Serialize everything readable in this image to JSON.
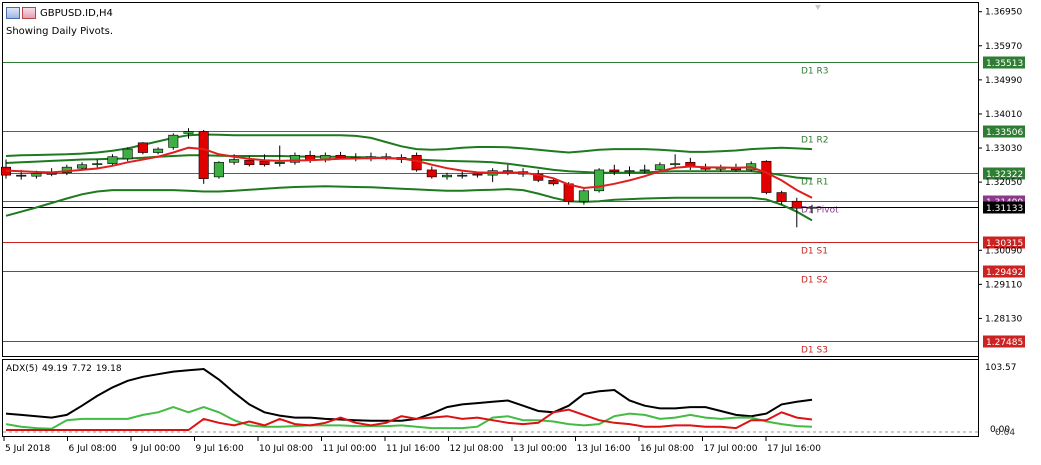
{
  "window": {
    "title": "GBPUSD.ID,H4",
    "pivot_note": "Showing Daily Pivots."
  },
  "colors": {
    "bull": "#3cb043",
    "bear": "#e00000",
    "pivot_line": "#8b3a8b",
    "resist_line": "#2e7d32",
    "support_line": "#cc2222",
    "current_price": "#000000",
    "ma": "#e02020",
    "band": "#1e7a1e",
    "adx_main": "#000000",
    "adx_plus": "#44bb44",
    "adx_minus": "#dd1111"
  },
  "price_axis": {
    "ticks": [
      "1.36950",
      "1.35970",
      "1.34990",
      "1.34010",
      "1.33030",
      "1.32050",
      "1.30090",
      "1.29110",
      "1.28130"
    ]
  },
  "pivots": [
    {
      "label": "D1 R3",
      "price": "1.35513",
      "value": 1.35513,
      "kind": "resist"
    },
    {
      "label": "D1 R2",
      "price": "1.33506",
      "value": 1.33506,
      "kind": "resist"
    },
    {
      "label": "D1 R1",
      "price": "1.32322",
      "value": 1.32322,
      "kind": "resist"
    },
    {
      "label": "D1 Pivot",
      "price": "1.31499",
      "value": 1.31499,
      "kind": "pivot"
    },
    {
      "label": "D1 S1",
      "price": "1.30315",
      "value": 1.30315,
      "kind": "support"
    },
    {
      "label": "D1 S2",
      "price": "1.29492",
      "value": 1.29492,
      "kind": "support"
    },
    {
      "label": "D1 S3",
      "price": "1.27485",
      "value": 1.27485,
      "kind": "support"
    }
  ],
  "current_price": {
    "price": "1.31133",
    "value": 1.31133
  },
  "adx": {
    "label_name": "ADX(5)",
    "adx_value": "49.19",
    "plus_di": "7.72",
    "minus_di": "19.18",
    "axis_top": "103.57",
    "axis_bottom": "0.00",
    "axis_alt": "0.04"
  },
  "time_axis": {
    "labels": [
      "5 Jul 2018",
      "6 Jul 08:00",
      "9 Jul 00:00",
      "9 Jul 16:00",
      "10 Jul 08:00",
      "11 Jul 00:00",
      "11 Jul 16:00",
      "12 Jul 08:00",
      "13 Jul 00:00",
      "13 Jul 16:00",
      "16 Jul 08:00",
      "17 Jul 00:00",
      "17 Jul 16:00"
    ]
  },
  "chart_data": {
    "type": "candlestick",
    "symbol": "GBPUSD.ID",
    "timeframe": "H4",
    "ylim": [
      1.2705,
      1.372
    ],
    "candles": [
      {
        "o": 1.3248,
        "h": 1.327,
        "l": 1.3215,
        "c": 1.3225
      },
      {
        "o": 1.3225,
        "h": 1.324,
        "l": 1.3212,
        "c": 1.3222
      },
      {
        "o": 1.3222,
        "h": 1.3238,
        "l": 1.3215,
        "c": 1.323
      },
      {
        "o": 1.3228,
        "h": 1.3245,
        "l": 1.3222,
        "c": 1.323
      },
      {
        "o": 1.3232,
        "h": 1.3255,
        "l": 1.3225,
        "c": 1.3248
      },
      {
        "o": 1.3245,
        "h": 1.3262,
        "l": 1.324,
        "c": 1.3255
      },
      {
        "o": 1.3255,
        "h": 1.327,
        "l": 1.3245,
        "c": 1.3258
      },
      {
        "o": 1.3258,
        "h": 1.3285,
        "l": 1.325,
        "c": 1.3278
      },
      {
        "o": 1.3272,
        "h": 1.3305,
        "l": 1.3265,
        "c": 1.33
      },
      {
        "o": 1.3318,
        "h": 1.332,
        "l": 1.3285,
        "c": 1.329
      },
      {
        "o": 1.329,
        "h": 1.3305,
        "l": 1.3285,
        "c": 1.33
      },
      {
        "o": 1.3305,
        "h": 1.3345,
        "l": 1.3298,
        "c": 1.334
      },
      {
        "o": 1.3345,
        "h": 1.336,
        "l": 1.333,
        "c": 1.335
      },
      {
        "o": 1.335,
        "h": 1.3355,
        "l": 1.32,
        "c": 1.3215
      },
      {
        "o": 1.322,
        "h": 1.3265,
        "l": 1.3215,
        "c": 1.3262
      },
      {
        "o": 1.3262,
        "h": 1.3285,
        "l": 1.3255,
        "c": 1.327
      },
      {
        "o": 1.3268,
        "h": 1.328,
        "l": 1.325,
        "c": 1.3255
      },
      {
        "o": 1.3265,
        "h": 1.3285,
        "l": 1.325,
        "c": 1.3255
      },
      {
        "o": 1.3258,
        "h": 1.331,
        "l": 1.325,
        "c": 1.3262
      },
      {
        "o": 1.3262,
        "h": 1.329,
        "l": 1.3255,
        "c": 1.3282
      },
      {
        "o": 1.3282,
        "h": 1.3295,
        "l": 1.326,
        "c": 1.3268
      },
      {
        "o": 1.3268,
        "h": 1.329,
        "l": 1.3262,
        "c": 1.3282
      },
      {
        "o": 1.3282,
        "h": 1.3292,
        "l": 1.327,
        "c": 1.3276
      },
      {
        "o": 1.3276,
        "h": 1.3288,
        "l": 1.3265,
        "c": 1.3272
      },
      {
        "o": 1.3272,
        "h": 1.329,
        "l": 1.3265,
        "c": 1.3278
      },
      {
        "o": 1.3278,
        "h": 1.3288,
        "l": 1.3268,
        "c": 1.3276
      },
      {
        "o": 1.3276,
        "h": 1.3285,
        "l": 1.326,
        "c": 1.327
      },
      {
        "o": 1.3282,
        "h": 1.329,
        "l": 1.3235,
        "c": 1.324
      },
      {
        "o": 1.324,
        "h": 1.325,
        "l": 1.3215,
        "c": 1.322
      },
      {
        "o": 1.322,
        "h": 1.3232,
        "l": 1.3212,
        "c": 1.3225
      },
      {
        "o": 1.3225,
        "h": 1.3235,
        "l": 1.3215,
        "c": 1.3222
      },
      {
        "o": 1.3228,
        "h": 1.3235,
        "l": 1.3218,
        "c": 1.3225
      },
      {
        "o": 1.3225,
        "h": 1.3245,
        "l": 1.3205,
        "c": 1.3238
      },
      {
        "o": 1.3238,
        "h": 1.3255,
        "l": 1.3225,
        "c": 1.3235
      },
      {
        "o": 1.3235,
        "h": 1.3245,
        "l": 1.322,
        "c": 1.3228
      },
      {
        "o": 1.3228,
        "h": 1.324,
        "l": 1.3205,
        "c": 1.321
      },
      {
        "o": 1.321,
        "h": 1.3215,
        "l": 1.3195,
        "c": 1.32
      },
      {
        "o": 1.32,
        "h": 1.3205,
        "l": 1.314,
        "c": 1.315
      },
      {
        "o": 1.315,
        "h": 1.3185,
        "l": 1.314,
        "c": 1.318
      },
      {
        "o": 1.318,
        "h": 1.3245,
        "l": 1.3175,
        "c": 1.324
      },
      {
        "o": 1.324,
        "h": 1.3255,
        "l": 1.3225,
        "c": 1.3235
      },
      {
        "o": 1.3235,
        "h": 1.325,
        "l": 1.3222,
        "c": 1.3238
      },
      {
        "o": 1.3238,
        "h": 1.3255,
        "l": 1.323,
        "c": 1.324
      },
      {
        "o": 1.324,
        "h": 1.3262,
        "l": 1.3235,
        "c": 1.3255
      },
      {
        "o": 1.3255,
        "h": 1.3285,
        "l": 1.3248,
        "c": 1.3258
      },
      {
        "o": 1.3262,
        "h": 1.3275,
        "l": 1.324,
        "c": 1.3248
      },
      {
        "o": 1.3248,
        "h": 1.3258,
        "l": 1.3238,
        "c": 1.3242
      },
      {
        "o": 1.3242,
        "h": 1.3255,
        "l": 1.3235,
        "c": 1.3245
      },
      {
        "o": 1.3245,
        "h": 1.3258,
        "l": 1.3235,
        "c": 1.324
      },
      {
        "o": 1.324,
        "h": 1.3265,
        "l": 1.3235,
        "c": 1.3258
      },
      {
        "o": 1.3265,
        "h": 1.3268,
        "l": 1.317,
        "c": 1.3175
      },
      {
        "o": 1.3175,
        "h": 1.318,
        "l": 1.314,
        "c": 1.315
      },
      {
        "o": 1.315,
        "h": 1.316,
        "l": 1.3075,
        "c": 1.313
      },
      {
        "o": 1.313,
        "h": 1.314,
        "l": 1.3115,
        "c": 1.3133
      }
    ],
    "ma": [
      1.3238,
      1.3236,
      1.3234,
      1.3233,
      1.3236,
      1.324,
      1.3244,
      1.3252,
      1.3262,
      1.327,
      1.3278,
      1.329,
      1.3304,
      1.33,
      1.3285,
      1.3278,
      1.3272,
      1.3268,
      1.3266,
      1.3267,
      1.3268,
      1.327,
      1.3272,
      1.3273,
      1.3274,
      1.3274,
      1.3273,
      1.3266,
      1.3255,
      1.3245,
      1.3238,
      1.3233,
      1.3232,
      1.3233,
      1.3232,
      1.3226,
      1.3216,
      1.3198,
      1.3188,
      1.3192,
      1.32,
      1.321,
      1.3222,
      1.3236,
      1.3246,
      1.325,
      1.3248,
      1.3247,
      1.3246,
      1.3248,
      1.3232,
      1.321,
      1.3182,
      1.316
    ],
    "band_upper": [
      1.328,
      1.3282,
      1.3283,
      1.3284,
      1.3285,
      1.3287,
      1.329,
      1.3295,
      1.3302,
      1.3312,
      1.3322,
      1.3332,
      1.334,
      1.3342,
      1.3341,
      1.334,
      1.334,
      1.334,
      1.334,
      1.334,
      1.334,
      1.334,
      1.334,
      1.3338,
      1.3332,
      1.332,
      1.3308,
      1.33,
      1.3298,
      1.33,
      1.3304,
      1.3306,
      1.3306,
      1.3305,
      1.3302,
      1.3298,
      1.3294,
      1.329,
      1.3294,
      1.3298,
      1.33,
      1.33,
      1.33,
      1.3298,
      1.3295,
      1.3292,
      1.3292,
      1.3294,
      1.3296,
      1.33,
      1.3302,
      1.3304,
      1.3302,
      1.33
    ],
    "band_mid": [
      1.326,
      1.3262,
      1.3264,
      1.3266,
      1.3268,
      1.327,
      1.3271,
      1.3272,
      1.3273,
      1.3275,
      1.3278,
      1.328,
      1.3282,
      1.3282,
      1.3281,
      1.328,
      1.328,
      1.328,
      1.328,
      1.3279,
      1.3278,
      1.3278,
      1.3278,
      1.3277,
      1.3276,
      1.3274,
      1.3272,
      1.327,
      1.3268,
      1.3266,
      1.3265,
      1.3264,
      1.3262,
      1.3258,
      1.3252,
      1.3246,
      1.324,
      1.3236,
      1.3234,
      1.3232,
      1.3232,
      1.3232,
      1.3233,
      1.3235,
      1.3236,
      1.3236,
      1.3236,
      1.3236,
      1.3236,
      1.3236,
      1.3232,
      1.3225,
      1.3218,
      1.3215
    ],
    "band_lower": [
      1.3108,
      1.312,
      1.3132,
      1.3145,
      1.3158,
      1.317,
      1.3178,
      1.3182,
      1.3182,
      1.3182,
      1.3182,
      1.3182,
      1.318,
      1.3178,
      1.3178,
      1.318,
      1.3183,
      1.3186,
      1.3189,
      1.3191,
      1.3192,
      1.3193,
      1.3192,
      1.3191,
      1.319,
      1.3188,
      1.3186,
      1.3184,
      1.3182,
      1.318,
      1.318,
      1.3182,
      1.3183,
      1.3185,
      1.3182,
      1.3172,
      1.316,
      1.315,
      1.3148,
      1.315,
      1.3154,
      1.3156,
      1.3158,
      1.3159,
      1.316,
      1.316,
      1.316,
      1.316,
      1.316,
      1.316,
      1.3155,
      1.314,
      1.312,
      1.3095
    ],
    "adx_ylim": [
      0,
      103.57
    ],
    "adx_series": [
      {
        "name": "ADX",
        "key": "adx",
        "values": [
          28,
          26,
          24,
          22,
          26,
          40,
          55,
          68,
          78,
          84,
          88,
          92,
          94,
          96,
          80,
          60,
          42,
          30,
          25,
          22,
          22,
          20,
          19,
          18,
          17,
          17,
          17,
          20,
          28,
          38,
          42,
          44,
          46,
          48,
          40,
          32,
          30,
          40,
          58,
          62,
          64,
          48,
          40,
          36,
          36,
          38,
          38,
          32,
          26,
          24,
          28,
          42,
          46,
          49
        ]
      },
      {
        "name": "+DI",
        "key": "plus",
        "values": [
          12,
          8,
          6,
          5,
          18,
          20,
          20,
          20,
          20,
          26,
          30,
          38,
          30,
          38,
          30,
          18,
          10,
          8,
          8,
          9,
          10,
          10,
          10,
          9,
          9,
          9,
          10,
          8,
          6,
          6,
          6,
          8,
          22,
          24,
          18,
          18,
          16,
          12,
          10,
          12,
          24,
          28,
          26,
          20,
          22,
          26,
          22,
          20,
          22,
          22,
          16,
          12,
          9,
          8
        ]
      },
      {
        "name": "-DI",
        "key": "minus",
        "values": [
          3,
          3,
          3,
          3,
          3,
          3,
          3,
          3,
          3,
          3,
          3,
          3,
          3,
          20,
          14,
          10,
          16,
          10,
          20,
          12,
          10,
          14,
          22,
          14,
          10,
          14,
          24,
          20,
          22,
          24,
          20,
          22,
          18,
          14,
          12,
          14,
          30,
          34,
          26,
          18,
          14,
          12,
          8,
          8,
          10,
          10,
          8,
          8,
          6,
          18,
          18,
          30,
          22,
          19
        ]
      }
    ]
  }
}
